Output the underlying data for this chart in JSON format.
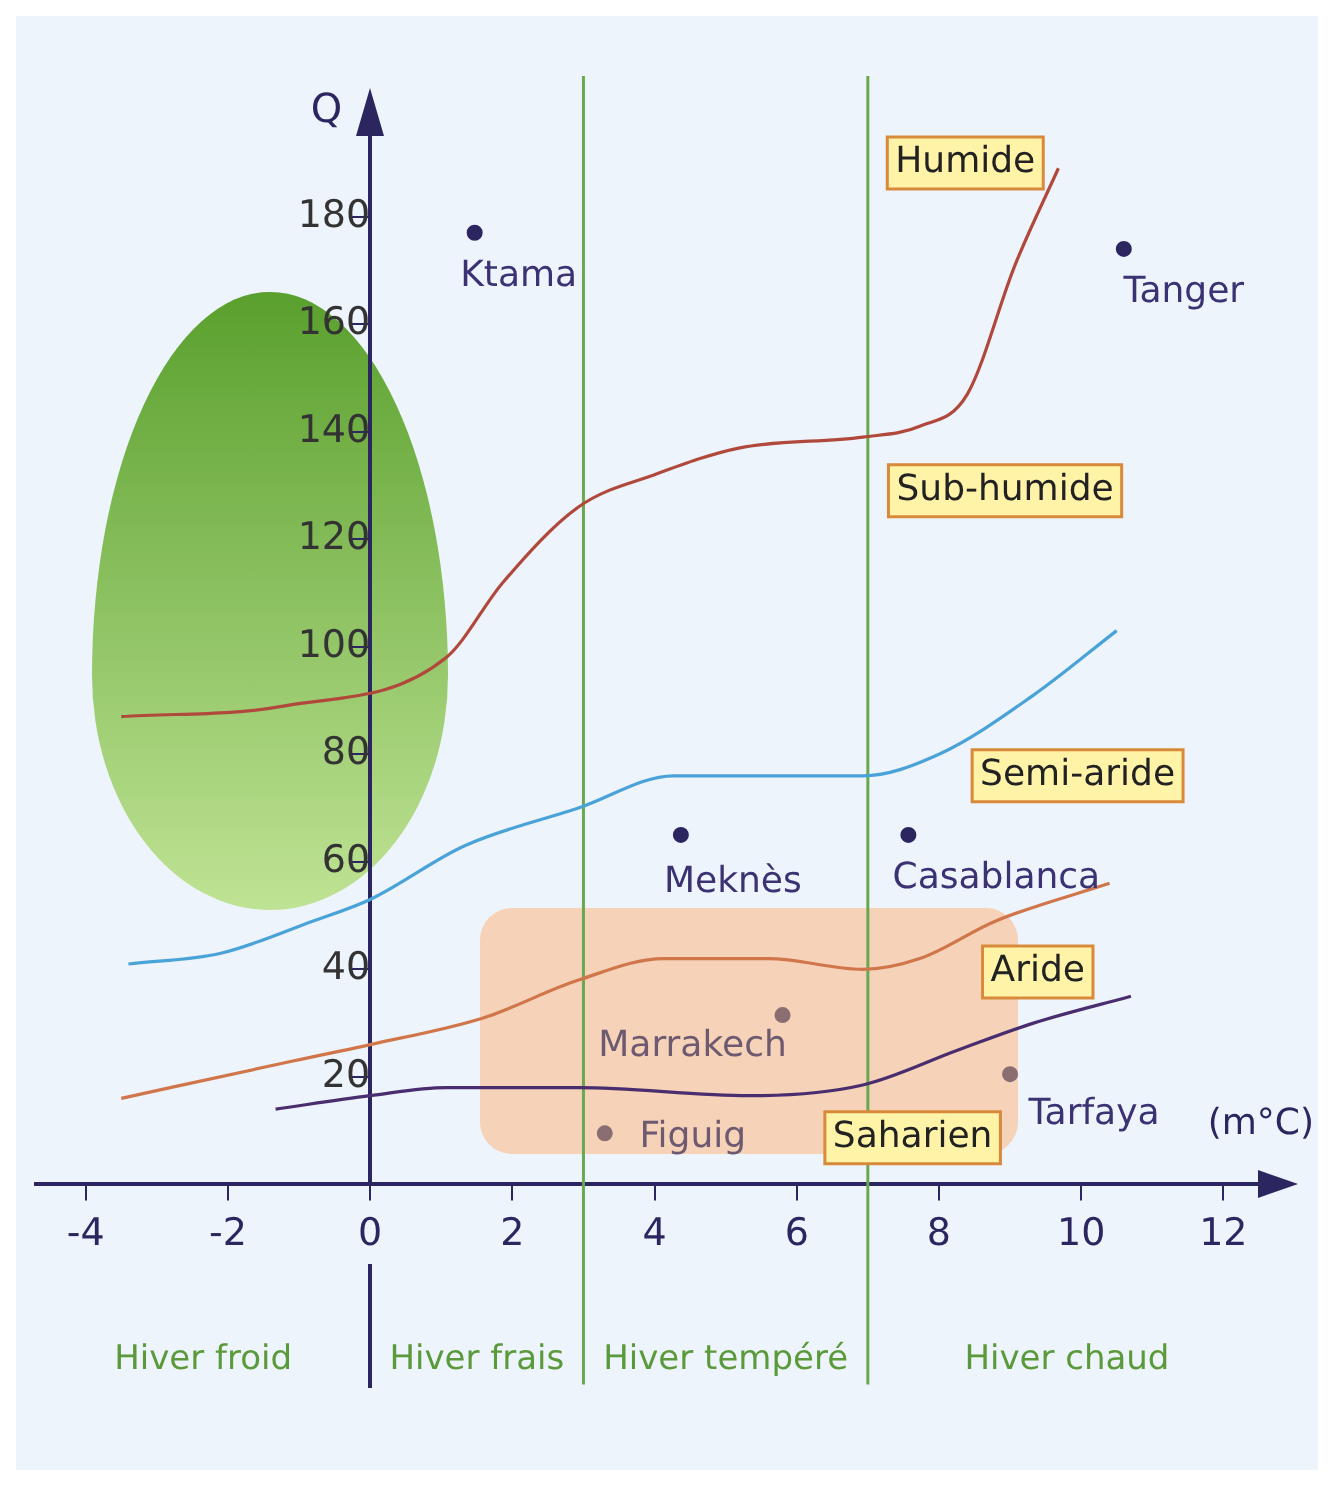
{
  "chart_data": {
    "type": "scatter",
    "ylabel": "Q",
    "xlabel": "(m°C)",
    "xlim": [
      -4.7,
      12.6
    ],
    "ylim": [
      0,
      195
    ],
    "xticks": [
      -4,
      -2,
      0,
      2,
      4,
      6,
      8,
      10,
      12
    ],
    "yticks": [
      20,
      40,
      60,
      80,
      100,
      120,
      140,
      160,
      180
    ],
    "grid": false,
    "legend": false,
    "series": [
      {
        "type": "line",
        "color": "#b0493c",
        "marker": "none",
        "x": [
          -3.5,
          -1.2,
          1.07,
          1.87,
          2.93,
          4.0,
          5.2,
          6.93,
          7.73,
          8.4,
          9.07,
          9.68
        ],
        "values": [
          87,
          89,
          98,
          112,
          126,
          132,
          137,
          139,
          141,
          147,
          171,
          189
        ]
      },
      {
        "type": "line",
        "color": "#4aa3d8",
        "marker": "none",
        "x": [
          -3.4,
          -2.1,
          -0.8,
          0,
          1.33,
          2.93,
          4.27,
          5.6,
          6.93,
          8,
          9.33,
          10.5
        ],
        "values": [
          41,
          43,
          49,
          53,
          63,
          70,
          76,
          76,
          76,
          80,
          91,
          103
        ]
      },
      {
        "type": "line",
        "color": "#d0764a",
        "marker": "none",
        "x": [
          -3.5,
          -1.07,
          0,
          1.6,
          2.93,
          4.13,
          5.6,
          6.93,
          7.73,
          8.8,
          10.4
        ],
        "values": [
          16,
          23,
          26,
          31,
          38,
          42,
          42,
          40,
          42,
          49,
          56
        ]
      },
      {
        "type": "line",
        "color": "#4a2d6e",
        "marker": "none",
        "x": [
          -1.33,
          0,
          1.07,
          2.93,
          5.33,
          6.93,
          8.27,
          9.33,
          10.7
        ],
        "values": [
          14,
          16.5,
          18,
          18,
          16.5,
          18.5,
          25,
          30,
          35
        ]
      },
      {
        "type": "scatter",
        "marker": "circle",
        "colors": [
          "#2b2660",
          "#2b2660",
          "#2b2660",
          "#2b2660",
          "#8a6e72",
          "#8a6e72",
          "#8a6e72"
        ],
        "x": [
          1.47,
          10.6,
          4.37,
          7.57,
          5.8,
          3.3,
          9.0
        ],
        "values": [
          177,
          174,
          65,
          65,
          31.5,
          9.5,
          20.5
        ]
      }
    ],
    "ref_lines": [
      {
        "axis": "x",
        "value": 3,
        "color": "#6aa84f"
      },
      {
        "axis": "x",
        "value": 7,
        "color": "#6aa84f"
      }
    ],
    "annotations": [
      "Humide",
      "Sub-humide",
      "Semi-aride",
      "Aride",
      "Saharien",
      "Hiver froid",
      "Hiver frais",
      "Hiver tempéré",
      "Hiver chaud",
      {
        "text": "Ktama",
        "x": 1.47,
        "y": 177
      },
      {
        "text": "Tanger",
        "x": 10.6,
        "y": 174
      },
      {
        "text": "Meknès",
        "x": 4.37,
        "y": 65
      },
      {
        "text": "Casablanca",
        "x": 7.57,
        "y": 65
      },
      {
        "text": "Marrakech",
        "x": 5.8,
        "y": 31.5
      },
      {
        "text": "Figuig",
        "x": 3.3,
        "y": 9.5
      },
      {
        "text": "Tarfaya",
        "x": 9.0,
        "y": 20.5
      }
    ]
  }
}
